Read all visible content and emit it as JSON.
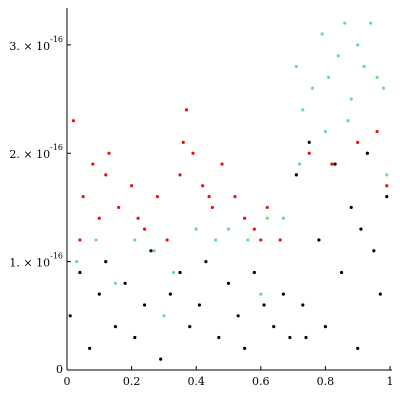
{
  "chart_data": {
    "type": "scatter",
    "xlim": [
      0,
      1
    ],
    "ylim": [
      0,
      3.34e-16
    ],
    "xticks": [
      0,
      0.2,
      0.4,
      0.6,
      0.8,
      1
    ],
    "yticks": [
      0,
      {
        "value": 1e-16,
        "label": "1. × 10",
        "exponent": "-16"
      },
      {
        "value": 2e-16,
        "label": "2. × 10",
        "exponent": "-16"
      },
      {
        "value": 3e-16,
        "label": "3. × 10",
        "exponent": "-16"
      }
    ],
    "series": [
      {
        "color": "#e8120c",
        "x": [
          0.02,
          0.05,
          0.08,
          0.1,
          0.13,
          0.16,
          0.2,
          0.24,
          0.28,
          0.31,
          0.35,
          0.37,
          0.39,
          0.42,
          0.45,
          0.48,
          0.52,
          0.55,
          0.58,
          0.62,
          0.66,
          0.04,
          0.12,
          0.22,
          0.36,
          0.44,
          0.6,
          0.75,
          0.82,
          0.9,
          0.96,
          0.99
        ],
        "values": [
          2.3e-16,
          1.6e-16,
          1.9e-16,
          1.4e-16,
          2e-16,
          1.5e-16,
          1.7e-16,
          1.3e-16,
          1.6e-16,
          1.2e-16,
          1.8e-16,
          2.4e-16,
          2e-16,
          1.7e-16,
          1.5e-16,
          1.9e-16,
          1.6e-16,
          1.4e-16,
          1.3e-16,
          1.5e-16,
          1.2e-16,
          1.2e-16,
          1.8e-16,
          1.4e-16,
          2.1e-16,
          1.6e-16,
          1.2e-16,
          2e-16,
          1.9e-16,
          2.1e-16,
          2.2e-16,
          1.7e-16
        ]
      },
      {
        "color": "#6fdc8c",
        "x": [
          0.03,
          0.09,
          0.15,
          0.21,
          0.27,
          0.33,
          0.4,
          0.46,
          0.5,
          0.56,
          0.62,
          0.67,
          0.71,
          0.73,
          0.76,
          0.79,
          0.81,
          0.84,
          0.86,
          0.88,
          0.9,
          0.92,
          0.94,
          0.96,
          0.98,
          0.72,
          0.8,
          0.87,
          0.93,
          0.99,
          0.3,
          0.6
        ],
        "values": [
          1e-16,
          1.2e-16,
          8e-17,
          1.2e-16,
          1.1e-16,
          9e-17,
          1.3e-16,
          1.2e-16,
          1.3e-16,
          1.2e-16,
          1.4e-16,
          1.4e-16,
          2.8e-16,
          2.4e-16,
          2.6e-16,
          3.1e-16,
          2.7e-16,
          2.9e-16,
          3.2e-16,
          2.5e-16,
          3e-16,
          2.8e-16,
          3.2e-16,
          2.7e-16,
          2.6e-16,
          1.9e-16,
          2.2e-16,
          2.3e-16,
          2e-16,
          1.8e-16,
          5e-17,
          7e-17
        ]
      },
      {
        "color": "#000000",
        "x": [
          0.01,
          0.04,
          0.07,
          0.1,
          0.12,
          0.15,
          0.18,
          0.21,
          0.24,
          0.26,
          0.29,
          0.32,
          0.35,
          0.38,
          0.41,
          0.43,
          0.47,
          0.5,
          0.53,
          0.55,
          0.58,
          0.61,
          0.64,
          0.67,
          0.69,
          0.71,
          0.73,
          0.75,
          0.78,
          0.8,
          0.83,
          0.85,
          0.88,
          0.9,
          0.93,
          0.95,
          0.97,
          0.99,
          0.74,
          0.91
        ],
        "values": [
          5e-17,
          9e-17,
          2e-17,
          7e-17,
          1e-16,
          4e-17,
          8e-17,
          3e-17,
          6e-17,
          1.1e-16,
          1e-17,
          7e-17,
          9e-17,
          4e-17,
          6e-17,
          1e-16,
          3e-17,
          8e-17,
          5e-17,
          2e-17,
          9e-17,
          6e-17,
          4e-17,
          7e-17,
          3e-17,
          1.8e-16,
          6e-17,
          2.1e-16,
          1.2e-16,
          4e-17,
          1.9e-16,
          9e-17,
          1.5e-16,
          2e-17,
          2e-16,
          1.1e-16,
          7e-17,
          1.6e-16,
          3e-17,
          1.3e-16
        ]
      }
    ]
  }
}
